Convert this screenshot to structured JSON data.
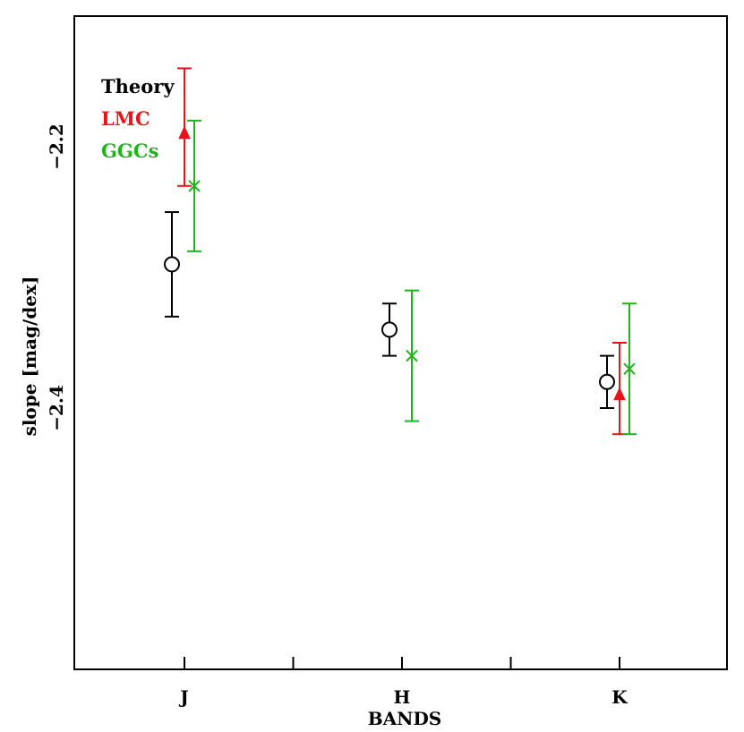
{
  "chart_data": {
    "type": "scatter",
    "xlabel": "BANDS",
    "ylabel": "slope [mag/dex]",
    "categories": [
      "J",
      "H",
      "K"
    ],
    "yticks": [
      -2.4,
      -2.2
    ],
    "ytick_labels": [
      "−2.4",
      "−2.2"
    ],
    "ylim": [
      -2.1,
      -2.6
    ],
    "y_minor_step": 0.05,
    "grid": false,
    "legend_position": "top-left",
    "colors": {
      "Theory": "#000000",
      "LMC": "#e8141a",
      "GGCs": "#1fb41a"
    },
    "series": [
      {
        "name": "Theory",
        "marker": "open-circle",
        "points": [
          {
            "category": "J",
            "value": -2.29,
            "err_low": 0.04,
            "err_high": 0.04
          },
          {
            "category": "H",
            "value": -2.34,
            "err_low": 0.02,
            "err_high": 0.02
          },
          {
            "category": "K",
            "value": -2.38,
            "err_low": 0.02,
            "err_high": 0.02
          }
        ]
      },
      {
        "name": "LMC",
        "marker": "filled-triangle",
        "points": [
          {
            "category": "J",
            "value": -2.19,
            "err_low": 0.05,
            "err_high": 0.04
          },
          {
            "category": "K",
            "value": -2.39,
            "err_low": 0.04,
            "err_high": 0.03
          }
        ]
      },
      {
        "name": "GGCs",
        "marker": "cross",
        "points": [
          {
            "category": "J",
            "value": -2.23,
            "err_low": 0.05,
            "err_high": 0.05
          },
          {
            "category": "H",
            "value": -2.36,
            "err_low": 0.05,
            "err_high": 0.05
          },
          {
            "category": "K",
            "value": -2.37,
            "err_low": 0.05,
            "err_high": 0.05
          }
        ]
      }
    ]
  }
}
